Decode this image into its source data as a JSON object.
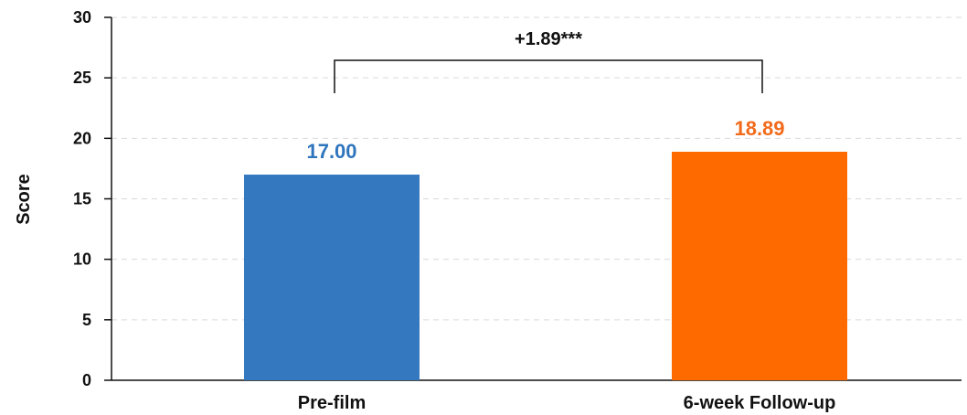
{
  "chart_data": {
    "type": "bar",
    "categories": [
      "Pre-film",
      "6-week Follow-up"
    ],
    "values": [
      17.0,
      18.89
    ],
    "value_labels": [
      "17.00",
      "18.89"
    ],
    "bar_colors": [
      "#3478c0",
      "#ff6a00"
    ],
    "label_colors": [
      "#2f75bd",
      "#f26a1b"
    ],
    "ylabel": "Score",
    "ylim": [
      0,
      30
    ],
    "yticks": [
      0,
      5,
      10,
      15,
      20,
      25,
      30
    ],
    "grid": true,
    "annotation": {
      "text": "+1.89***",
      "between": [
        0,
        1
      ]
    }
  }
}
